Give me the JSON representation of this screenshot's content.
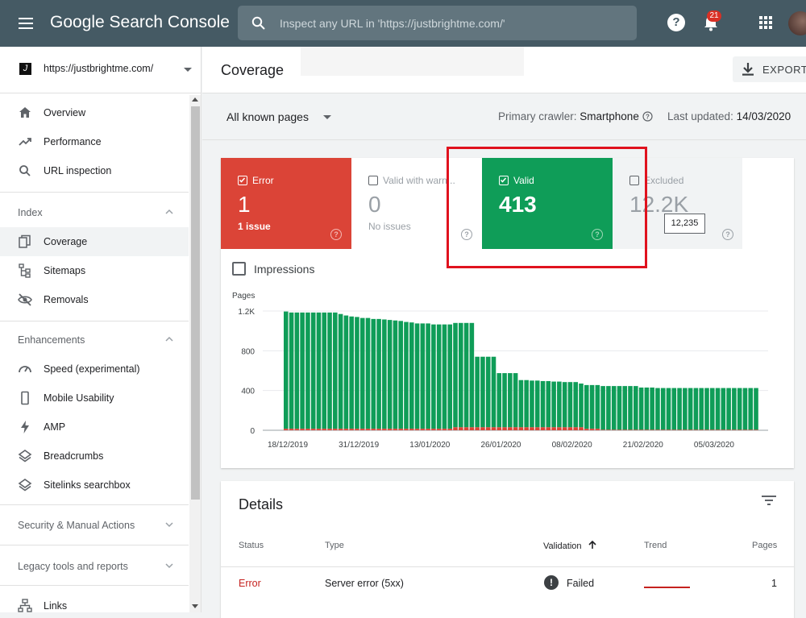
{
  "header": {
    "logo_text": "Google Search Console",
    "search_placeholder": "Inspect any URL in 'https://justbrightme.com/'",
    "notification_count": "21",
    "icons": [
      "menu-icon",
      "search-icon",
      "help-icon",
      "bell-icon",
      "apps-icon",
      "avatar"
    ]
  },
  "sidebar": {
    "property": "https://justbrightme.com/",
    "property_favicon": "J",
    "top_items": [
      {
        "label": "Overview",
        "icon": "home-icon"
      },
      {
        "label": "Performance",
        "icon": "trending-up-icon"
      },
      {
        "label": "URL inspection",
        "icon": "search-icon"
      }
    ],
    "sections": [
      {
        "title": "Index",
        "expanded": true,
        "items": [
          {
            "label": "Coverage",
            "icon": "coverage-icon",
            "active": true
          },
          {
            "label": "Sitemaps",
            "icon": "sitemap-icon"
          },
          {
            "label": "Removals",
            "icon": "eye-off-icon"
          }
        ]
      },
      {
        "title": "Enhancements",
        "expanded": true,
        "items": [
          {
            "label": "Speed (experimental)",
            "icon": "speed-icon"
          },
          {
            "label": "Mobile Usability",
            "icon": "phone-icon"
          },
          {
            "label": "AMP",
            "icon": "bolt-icon"
          },
          {
            "label": "Breadcrumbs",
            "icon": "layers-icon"
          },
          {
            "label": "Sitelinks searchbox",
            "icon": "layers-icon"
          }
        ]
      },
      {
        "title": "Security & Manual Actions",
        "expanded": false,
        "items": []
      },
      {
        "title": "Legacy tools and reports",
        "expanded": false,
        "items": []
      }
    ],
    "bottom_items": [
      {
        "label": "Links",
        "icon": "links-icon"
      }
    ]
  },
  "page": {
    "title": "Coverage",
    "export_label": "EXPORT",
    "filter_value": "All known pages",
    "crawler_label": "Primary crawler:",
    "crawler_value": "Smartphone",
    "updated_label": "Last updated:",
    "updated_value": "14/03/2020"
  },
  "tiles": [
    {
      "label": "Error",
      "value": "1",
      "sub": "1 issue",
      "checked": true
    },
    {
      "label": "Valid with warn...",
      "value": "0",
      "sub": "No issues",
      "checked": false
    },
    {
      "label": "Valid",
      "value": "413",
      "sub": "",
      "checked": true
    },
    {
      "label": "Excluded",
      "value": "12.2K",
      "sub": "",
      "checked": false
    }
  ],
  "tooltip": "12,235",
  "impressions_label": "Impressions",
  "colors": {
    "error": "#db4437",
    "valid": "#0f9d58",
    "highlight": "#e0121e",
    "header": "#455a64"
  },
  "chart_data": {
    "type": "bar",
    "ylabel": "Pages",
    "ylim": [
      0,
      1200
    ],
    "yticks": [
      "1.2K",
      "800",
      "400",
      "0"
    ],
    "yticks_values": [
      1200,
      800,
      400,
      0
    ],
    "xtick_labels": [
      "18/12/2019",
      "31/12/2019",
      "13/01/2020",
      "26/01/2020",
      "08/02/2020",
      "21/02/2020",
      "05/03/2020"
    ],
    "xtick_index": [
      0,
      13,
      26,
      39,
      52,
      65,
      78
    ],
    "series": [
      {
        "name": "Valid",
        "color": "#0f9d58",
        "values": [
          1180,
          1170,
          1170,
          1170,
          1170,
          1170,
          1170,
          1170,
          1170,
          1170,
          1155,
          1140,
          1130,
          1125,
          1115,
          1115,
          1105,
          1105,
          1100,
          1095,
          1090,
          1085,
          1075,
          1070,
          1060,
          1060,
          1060,
          1050,
          1050,
          1050,
          1050,
          1050,
          1050,
          1050,
          1050,
          710,
          710,
          710,
          710,
          545,
          545,
          545,
          545,
          475,
          475,
          470,
          470,
          465,
          465,
          460,
          460,
          455,
          455,
          455,
          440,
          440,
          440,
          440,
          440,
          440,
          440,
          440,
          440,
          440,
          440,
          425,
          425,
          425,
          420,
          420,
          420,
          420,
          420,
          420,
          420,
          420,
          420,
          420,
          420,
          420,
          420,
          420,
          420,
          420,
          420,
          420,
          420
        ]
      },
      {
        "name": "Error",
        "color": "#db4437",
        "values": [
          15,
          15,
          15,
          15,
          15,
          15,
          15,
          15,
          15,
          15,
          15,
          15,
          15,
          15,
          15,
          15,
          15,
          15,
          15,
          15,
          15,
          15,
          15,
          15,
          15,
          15,
          15,
          15,
          15,
          15,
          15,
          30,
          30,
          30,
          30,
          30,
          30,
          30,
          30,
          30,
          30,
          30,
          30,
          30,
          30,
          30,
          30,
          30,
          30,
          30,
          30,
          30,
          30,
          30,
          30,
          15,
          15,
          15,
          5,
          5,
          5,
          5,
          5,
          5,
          5,
          5,
          5,
          5,
          5,
          5,
          5,
          5,
          5,
          5,
          5,
          5,
          5,
          5,
          5,
          5,
          5,
          5,
          5,
          5,
          5,
          5,
          5
        ]
      }
    ]
  },
  "details": {
    "title": "Details",
    "columns": [
      "Status",
      "Type",
      "Validation",
      "Trend",
      "Pages"
    ],
    "rows": [
      {
        "status": "Error",
        "type": "Server error (5xx)",
        "validation": "Failed",
        "pages": "1"
      }
    ]
  }
}
